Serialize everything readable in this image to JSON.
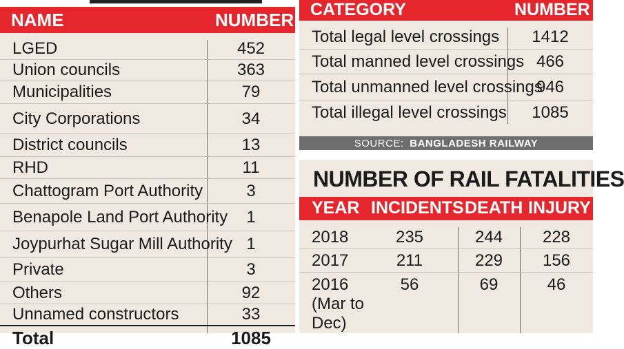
{
  "left_table": {
    "headers": {
      "name": "NAME",
      "number": "NUMBER"
    },
    "rows": [
      {
        "name": "LGED",
        "number": "452"
      },
      {
        "name": "Union councils",
        "number": "363"
      },
      {
        "name": "Municipalities",
        "number": "79"
      },
      {
        "name": "City Corporations",
        "number": "34"
      },
      {
        "name": "District councils",
        "number": "13"
      },
      {
        "name": "RHD",
        "number": "11"
      },
      {
        "name": "Chattogram Port Authority",
        "number": "3"
      },
      {
        "name": "Benapole Land Port Authority",
        "number": "1"
      },
      {
        "name": "Joypurhat Sugar Mill Authority",
        "number": "1"
      },
      {
        "name": "Private",
        "number": "3"
      },
      {
        "name": "Others",
        "number": "92"
      },
      {
        "name": "Unnamed constructors",
        "number": "33"
      }
    ],
    "total_partial": {
      "name": "Total",
      "number": "1085"
    }
  },
  "crossings_table": {
    "headers": {
      "category": "CATEGORY",
      "number": "NUMBER"
    },
    "rows": [
      {
        "category": "Total legal level crossings",
        "number": "1412"
      },
      {
        "category": "Total manned level crossings",
        "number": "466"
      },
      {
        "category": "Total unmanned level crossings",
        "number": "946"
      },
      {
        "category": "Total illegal level crossings",
        "number": "1085"
      }
    ],
    "source_prefix": "SOURCE: ",
    "source_name": "BANGLADESH RAILWAY"
  },
  "fatalities_table": {
    "title": "NUMBER OF RAIL FATALITIES",
    "headers": {
      "year": "YEAR",
      "incidents": "INCIDENTS",
      "death": "DEATH",
      "injury": "INJURY"
    },
    "rows": [
      {
        "year": "2018",
        "incidents": "235",
        "death": "244",
        "injury": "228"
      },
      {
        "year": "2017",
        "incidents": "211",
        "death": "229",
        "injury": "156"
      },
      {
        "year": "2016",
        "year_note_1": "(Mar to",
        "year_note_2": "Dec)",
        "incidents": "56",
        "death": "69",
        "injury": "46"
      }
    ]
  },
  "colors": {
    "header_red": "#e5262c",
    "panel_bg": "#efe9e1",
    "source_bar": "#6e6e6e"
  }
}
